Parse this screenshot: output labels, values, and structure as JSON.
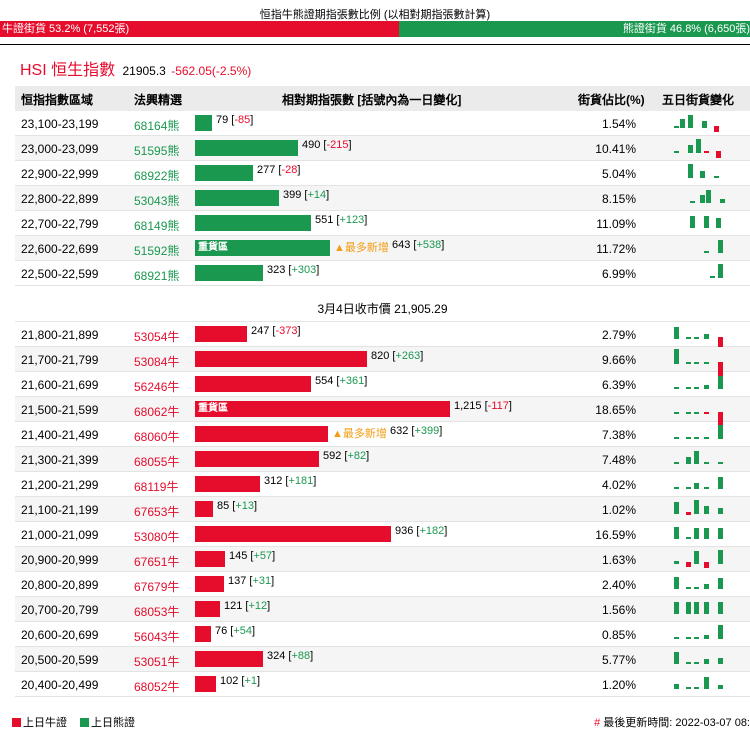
{
  "title": "恒指牛熊證期指張數比例 (以相對期指張數計算)",
  "ratio": {
    "bull_label": "牛證街貨 53.2% (7,552張)",
    "bear_label": "熊證街貨 46.8% (6,650張)",
    "bull_pct": 53.2,
    "bear_pct": 46.8
  },
  "hsi": {
    "name": "HSI 恒生指數",
    "value": "21905.3",
    "change": "-562.05(-2.5%)"
  },
  "headers": {
    "range": "恒指指數區域",
    "code": "法興精選",
    "ratio": "相對期指張數 [括號內為一日變化]",
    "pct": "街貨佔比(%)",
    "spark": "五日街貨變化"
  },
  "heavy_label": "重貨區",
  "most_new_label": "▲最多新增",
  "close_label": "3月4日收市價 21,905.29",
  "bear_rows": [
    {
      "range": "23,100-23,199",
      "code": "68164熊",
      "value": 79,
      "value_text": "79",
      "change": "-85",
      "pct": "1.54%"
    },
    {
      "range": "23,000-23,099",
      "code": "51595熊",
      "value": 490,
      "value_text": "490",
      "change": "-215",
      "pct": "10.41%"
    },
    {
      "range": "22,900-22,999",
      "code": "68922熊",
      "value": 277,
      "value_text": "277",
      "change": "-28",
      "pct": "5.04%"
    },
    {
      "range": "22,800-22,899",
      "code": "53043熊",
      "value": 399,
      "value_text": "399",
      "change": "+14",
      "pct": "8.15%"
    },
    {
      "range": "22,700-22,799",
      "code": "68149熊",
      "value": 551,
      "value_text": "551",
      "change": "+123",
      "pct": "11.09%"
    },
    {
      "range": "22,600-22,699",
      "code": "51592熊",
      "value": 643,
      "value_text": "643",
      "change": "+538",
      "pct": "11.72%",
      "heavy": true,
      "most_new": true
    },
    {
      "range": "22,500-22,599",
      "code": "68921熊",
      "value": 323,
      "value_text": "323",
      "change": "+303",
      "pct": "6.99%"
    }
  ],
  "bull_rows": [
    {
      "range": "21,800-21,899",
      "code": "53054牛",
      "value": 247,
      "value_text": "247",
      "change": "-373",
      "pct": "2.79%"
    },
    {
      "range": "21,700-21,799",
      "code": "53084牛",
      "value": 820,
      "value_text": "820",
      "change": "+263",
      "pct": "9.66%"
    },
    {
      "range": "21,600-21,699",
      "code": "56246牛",
      "value": 554,
      "value_text": "554",
      "change": "+361",
      "pct": "6.39%"
    },
    {
      "range": "21,500-21,599",
      "code": "68062牛",
      "value": 1215,
      "value_text": "1,215",
      "change": "-117",
      "pct": "18.65%",
      "heavy": true
    },
    {
      "range": "21,400-21,499",
      "code": "68060牛",
      "value": 632,
      "value_text": "632",
      "change": "+399",
      "pct": "7.38%",
      "most_new": true
    },
    {
      "range": "21,300-21,399",
      "code": "68055牛",
      "value": 592,
      "value_text": "592",
      "change": "+82",
      "pct": "7.48%"
    },
    {
      "range": "21,200-21,299",
      "code": "68119牛",
      "value": 312,
      "value_text": "312",
      "change": "+181",
      "pct": "4.02%"
    },
    {
      "range": "21,100-21,199",
      "code": "67653牛",
      "value": 85,
      "value_text": "85",
      "change": "+13",
      "pct": "1.02%"
    },
    {
      "range": "21,000-21,099",
      "code": "53080牛",
      "value": 936,
      "value_text": "936",
      "change": "+182",
      "pct": "16.59%"
    },
    {
      "range": "20,900-20,999",
      "code": "67651牛",
      "value": 145,
      "value_text": "145",
      "change": "+57",
      "pct": "1.63%"
    },
    {
      "range": "20,800-20,899",
      "code": "67679牛",
      "value": 137,
      "value_text": "137",
      "change": "+31",
      "pct": "2.40%"
    },
    {
      "range": "20,700-20,799",
      "code": "68053牛",
      "value": 121,
      "value_text": "121",
      "change": "+12",
      "pct": "1.56%"
    },
    {
      "range": "20,600-20,699",
      "code": "56043牛",
      "value": 76,
      "value_text": "76",
      "change": "+54",
      "pct": "0.85%"
    },
    {
      "range": "20,500-20,599",
      "code": "53051牛",
      "value": 324,
      "value_text": "324",
      "change": "+88",
      "pct": "5.77%"
    },
    {
      "range": "20,400-20,499",
      "code": "68052牛",
      "value": 102,
      "value_text": "102",
      "change": "+1",
      "pct": "1.20%"
    }
  ],
  "legend": {
    "bull": "上日牛證",
    "bear": "上日熊證"
  },
  "updated": {
    "hash": "#",
    "text": "最後更新時間: 2022-03-07 08:"
  },
  "colors": {
    "bull": "#e60c2c",
    "bear": "#1a9850",
    "new": "#f39c12"
  }
}
